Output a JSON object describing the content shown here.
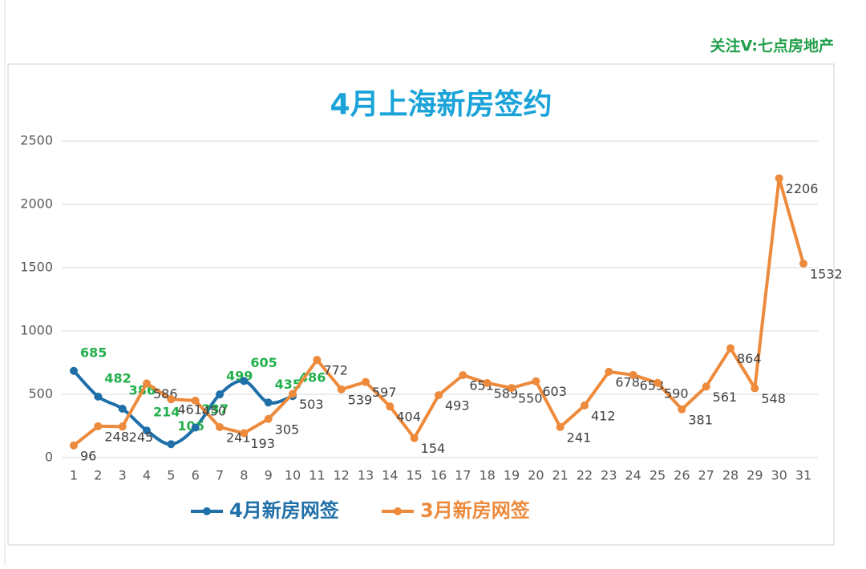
{
  "watermark": "关注V:七点房地产",
  "chart_data": {
    "type": "line",
    "title": "4月上海新房签约",
    "categories": [
      "1",
      "2",
      "3",
      "4",
      "5",
      "6",
      "7",
      "8",
      "9",
      "10",
      "11",
      "12",
      "13",
      "14",
      "15",
      "16",
      "17",
      "18",
      "19",
      "20",
      "21",
      "22",
      "23",
      "24",
      "25",
      "26",
      "27",
      "28",
      "29",
      "30",
      "31"
    ],
    "series": [
      {
        "name": "4月新房网签",
        "color": "#1f6fa8",
        "label_color": "#22b04b",
        "smooth": true,
        "values": [
          685,
          482,
          386,
          214,
          106,
          237,
          499,
          605,
          435,
          486,
          null,
          null,
          null,
          null,
          null,
          null,
          null,
          null,
          null,
          null,
          null,
          null,
          null,
          null,
          null,
          null,
          null,
          null,
          null,
          null,
          null
        ]
      },
      {
        "name": "3月新房网签",
        "color": "#ed8a3c",
        "label_color": "#404040",
        "smooth": false,
        "values": [
          96,
          248,
          245,
          586,
          461,
          450,
          241,
          193,
          305,
          503,
          772,
          539,
          597,
          404,
          154,
          493,
          651,
          589,
          550,
          603,
          241,
          412,
          678,
          653,
          590,
          381,
          561,
          864,
          548,
          2206,
          1532
        ]
      }
    ],
    "ylim": [
      0,
      2500
    ],
    "yticks": [
      0,
      500,
      1000,
      1500,
      2000,
      2500
    ],
    "grid": true,
    "legend": "bottom"
  }
}
